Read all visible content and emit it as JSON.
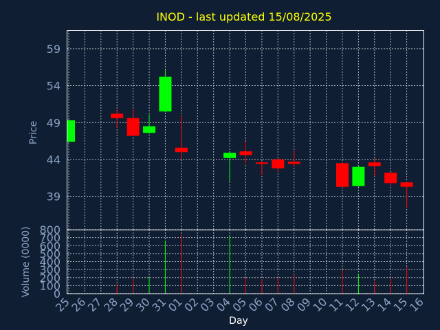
{
  "chart_data": {
    "type": "candlestick",
    "title": "INOD - last updated 15/08/2025",
    "xlabel": "Day",
    "days": [
      "25",
      "26",
      "27",
      "28",
      "29",
      "30",
      "31",
      "01",
      "02",
      "03",
      "04",
      "05",
      "06",
      "07",
      "08",
      "09",
      "10",
      "11",
      "12",
      "13",
      "14",
      "15",
      "16"
    ],
    "price_panel": {
      "ylabel": "Price",
      "yticks": [
        39,
        44,
        49,
        54,
        59
      ],
      "ylim": [
        34.5,
        61.5
      ]
    },
    "volume_panel": {
      "ylabel": "Volume (0000)",
      "yticks": [
        0,
        100,
        200,
        300,
        400,
        500,
        600,
        700,
        800
      ],
      "ylim": [
        0,
        800
      ]
    },
    "colors": {
      "up": "#00ff00",
      "down": "#ff0000"
    },
    "candles": [
      {
        "day": "25",
        "open": 46.4,
        "close": 49.3,
        "high": 49.4,
        "low": 46.3,
        "volume": 0
      },
      {
        "day": "28",
        "open": 50.2,
        "close": 49.6,
        "high": 50.8,
        "low": 48.3,
        "volume": 120
      },
      {
        "day": "29",
        "open": 49.6,
        "close": 47.2,
        "high": 50.8,
        "low": 47.1,
        "volume": 190
      },
      {
        "day": "30",
        "open": 47.6,
        "close": 48.5,
        "high": 50.1,
        "low": 47.5,
        "volume": 200
      },
      {
        "day": "31",
        "open": 50.5,
        "close": 55.2,
        "high": 56.1,
        "low": 50.4,
        "volume": 660
      },
      {
        "day": "01",
        "open": 45.6,
        "close": 45.0,
        "high": 50.0,
        "low": 44.1,
        "volume": 740
      },
      {
        "day": "04",
        "open": 44.2,
        "close": 44.9,
        "high": 45.0,
        "low": 41.0,
        "volume": 730
      },
      {
        "day": "05",
        "open": 45.1,
        "close": 44.6,
        "high": 46.4,
        "low": 43.4,
        "volume": 200
      },
      {
        "day": "06",
        "open": 43.6,
        "close": 43.4,
        "high": 43.8,
        "low": 41.9,
        "volume": 180
      },
      {
        "day": "07",
        "open": 44.0,
        "close": 42.8,
        "high": 44.2,
        "low": 42.3,
        "volume": 200
      },
      {
        "day": "08",
        "open": 43.7,
        "close": 43.4,
        "high": 45.2,
        "low": 43.0,
        "volume": 240
      },
      {
        "day": "11",
        "open": 43.5,
        "close": 40.3,
        "high": 43.6,
        "low": 40.2,
        "volume": 300
      },
      {
        "day": "12",
        "open": 40.4,
        "close": 43.0,
        "high": 43.1,
        "low": 40.3,
        "volume": 240
      },
      {
        "day": "13",
        "open": 43.6,
        "close": 43.1,
        "high": 44.2,
        "low": 41.7,
        "volume": 150
      },
      {
        "day": "14",
        "open": 42.2,
        "close": 40.8,
        "high": 42.3,
        "low": 40.4,
        "volume": 190
      },
      {
        "day": "15",
        "open": 40.9,
        "close": 40.3,
        "high": 41.0,
        "low": 37.4,
        "volume": 330
      }
    ]
  }
}
